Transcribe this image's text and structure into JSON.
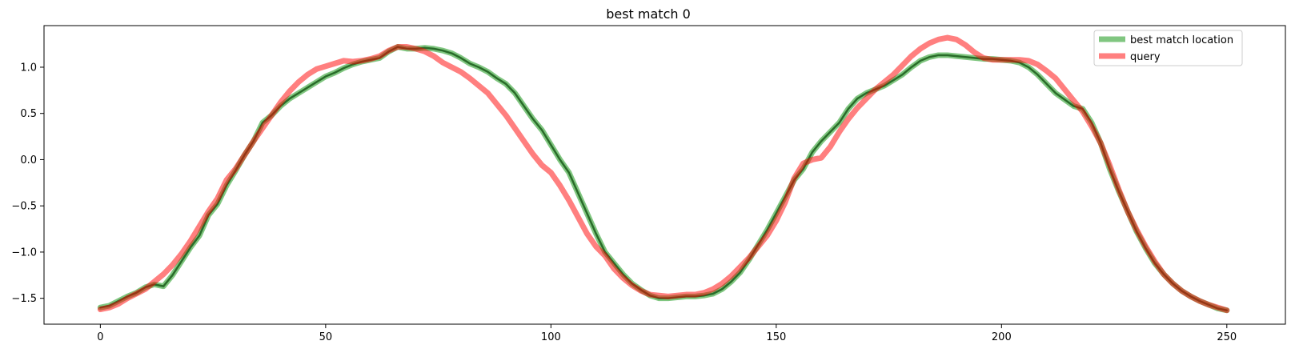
{
  "chart_data": {
    "type": "line",
    "title": "best match 0",
    "xlabel": "",
    "ylabel": "",
    "xlim": [
      -12.5,
      263
    ],
    "ylim": [
      -1.78,
      1.45
    ],
    "x_ticks": [
      0,
      50,
      100,
      150,
      200,
      250
    ],
    "x_tick_labels": [
      "0",
      "50",
      "100",
      "150",
      "200",
      "250"
    ],
    "y_ticks": [
      -1.5,
      -1.0,
      -0.5,
      0.0,
      0.5,
      1.0
    ],
    "y_tick_labels": [
      "−1.5",
      "−1.0",
      "−0.5",
      "0.0",
      "0.5",
      "1.0"
    ],
    "grid": false,
    "legend_position": "top-right",
    "series": [
      {
        "name": "best match location",
        "color": "#2ca02c",
        "alpha": 0.6,
        "overlay_color": "#1a5c1a",
        "x": [
          0,
          2,
          4,
          6,
          8,
          10,
          12,
          14,
          16,
          18,
          20,
          22,
          24,
          26,
          28,
          30,
          32,
          34,
          36,
          38,
          40,
          42,
          44,
          46,
          48,
          50,
          52,
          54,
          56,
          58,
          60,
          62,
          64,
          66,
          68,
          70,
          72,
          74,
          76,
          78,
          80,
          82,
          84,
          86,
          88,
          90,
          92,
          94,
          96,
          98,
          100,
          102,
          104,
          106,
          108,
          110,
          112,
          114,
          116,
          118,
          120,
          122,
          124,
          126,
          128,
          130,
          132,
          134,
          136,
          138,
          140,
          142,
          144,
          146,
          148,
          150,
          152,
          154,
          156,
          158,
          160,
          162,
          164,
          166,
          168,
          170,
          172,
          174,
          176,
          178,
          180,
          182,
          184,
          186,
          188,
          190,
          192,
          194,
          196,
          198,
          200,
          202,
          204,
          206,
          208,
          210,
          212,
          214,
          216,
          218,
          220,
          222,
          224,
          226,
          228,
          230,
          232,
          234,
          236,
          238,
          240,
          242,
          244,
          246,
          248,
          250
        ],
        "y": [
          -1.6,
          -1.58,
          -1.53,
          -1.48,
          -1.44,
          -1.38,
          -1.35,
          -1.37,
          -1.25,
          -1.1,
          -0.95,
          -0.82,
          -0.6,
          -0.48,
          -0.28,
          -0.12,
          0.05,
          0.2,
          0.4,
          0.48,
          0.58,
          0.66,
          0.72,
          0.78,
          0.84,
          0.9,
          0.94,
          0.99,
          1.03,
          1.06,
          1.08,
          1.1,
          1.17,
          1.22,
          1.2,
          1.2,
          1.21,
          1.2,
          1.18,
          1.15,
          1.1,
          1.04,
          1.0,
          0.95,
          0.88,
          0.82,
          0.72,
          0.58,
          0.44,
          0.32,
          0.16,
          0.0,
          -0.14,
          -0.36,
          -0.58,
          -0.8,
          -1.0,
          -1.12,
          -1.24,
          -1.34,
          -1.41,
          -1.47,
          -1.5,
          -1.5,
          -1.49,
          -1.48,
          -1.48,
          -1.47,
          -1.45,
          -1.4,
          -1.32,
          -1.22,
          -1.08,
          -0.92,
          -0.76,
          -0.58,
          -0.4,
          -0.22,
          -0.1,
          0.08,
          0.2,
          0.3,
          0.4,
          0.55,
          0.66,
          0.72,
          0.76,
          0.8,
          0.86,
          0.92,
          1.0,
          1.07,
          1.11,
          1.13,
          1.13,
          1.12,
          1.11,
          1.1,
          1.09,
          1.09,
          1.08,
          1.07,
          1.05,
          1.0,
          0.92,
          0.82,
          0.72,
          0.65,
          0.58,
          0.55,
          0.4,
          0.18,
          -0.1,
          -0.34,
          -0.56,
          -0.78,
          -0.96,
          -1.12,
          -1.24,
          -1.34,
          -1.42,
          -1.48,
          -1.53,
          -1.57,
          -1.61,
          -1.63
        ]
      },
      {
        "name": "query",
        "color": "#ff0000",
        "alpha": 0.5,
        "x": [
          0,
          2,
          4,
          6,
          8,
          10,
          12,
          14,
          16,
          18,
          20,
          22,
          24,
          26,
          28,
          30,
          32,
          34,
          36,
          38,
          40,
          42,
          44,
          46,
          48,
          50,
          52,
          54,
          56,
          58,
          60,
          62,
          64,
          66,
          68,
          70,
          72,
          74,
          76,
          78,
          80,
          82,
          84,
          86,
          88,
          90,
          92,
          94,
          96,
          98,
          100,
          102,
          104,
          106,
          108,
          110,
          112,
          114,
          116,
          118,
          120,
          122,
          124,
          126,
          128,
          130,
          132,
          134,
          136,
          138,
          140,
          142,
          144,
          146,
          148,
          150,
          152,
          154,
          156,
          158,
          160,
          162,
          164,
          166,
          168,
          170,
          172,
          174,
          176,
          178,
          180,
          182,
          184,
          186,
          188,
          190,
          192,
          194,
          196,
          198,
          200,
          202,
          204,
          206,
          208,
          210,
          212,
          214,
          216,
          218,
          220,
          222,
          224,
          226,
          228,
          230,
          232,
          234,
          236,
          238,
          240,
          242,
          244,
          246,
          248,
          250
        ],
        "y": [
          -1.62,
          -1.6,
          -1.56,
          -1.5,
          -1.45,
          -1.4,
          -1.32,
          -1.24,
          -1.14,
          -1.02,
          -0.88,
          -0.72,
          -0.56,
          -0.42,
          -0.22,
          -0.1,
          0.05,
          0.2,
          0.34,
          0.48,
          0.62,
          0.74,
          0.84,
          0.92,
          0.98,
          1.01,
          1.04,
          1.07,
          1.06,
          1.07,
          1.09,
          1.12,
          1.18,
          1.22,
          1.22,
          1.2,
          1.17,
          1.12,
          1.05,
          1.0,
          0.95,
          0.88,
          0.8,
          0.72,
          0.6,
          0.48,
          0.34,
          0.2,
          0.06,
          -0.06,
          -0.14,
          -0.28,
          -0.44,
          -0.62,
          -0.8,
          -0.94,
          -1.04,
          -1.18,
          -1.28,
          -1.36,
          -1.42,
          -1.46,
          -1.47,
          -1.48,
          -1.47,
          -1.46,
          -1.46,
          -1.44,
          -1.4,
          -1.34,
          -1.26,
          -1.16,
          -1.06,
          -0.94,
          -0.82,
          -0.66,
          -0.46,
          -0.2,
          -0.04,
          0.0,
          0.02,
          0.14,
          0.3,
          0.44,
          0.56,
          0.66,
          0.76,
          0.84,
          0.92,
          1.02,
          1.12,
          1.2,
          1.26,
          1.3,
          1.32,
          1.3,
          1.24,
          1.16,
          1.1,
          1.08,
          1.08,
          1.08,
          1.08,
          1.07,
          1.03,
          0.96,
          0.88,
          0.76,
          0.64,
          0.52,
          0.36,
          0.18,
          -0.06,
          -0.32,
          -0.56,
          -0.76,
          -0.94,
          -1.1,
          -1.24,
          -1.34,
          -1.42,
          -1.48,
          -1.53,
          -1.57,
          -1.6,
          -1.63
        ]
      }
    ]
  }
}
